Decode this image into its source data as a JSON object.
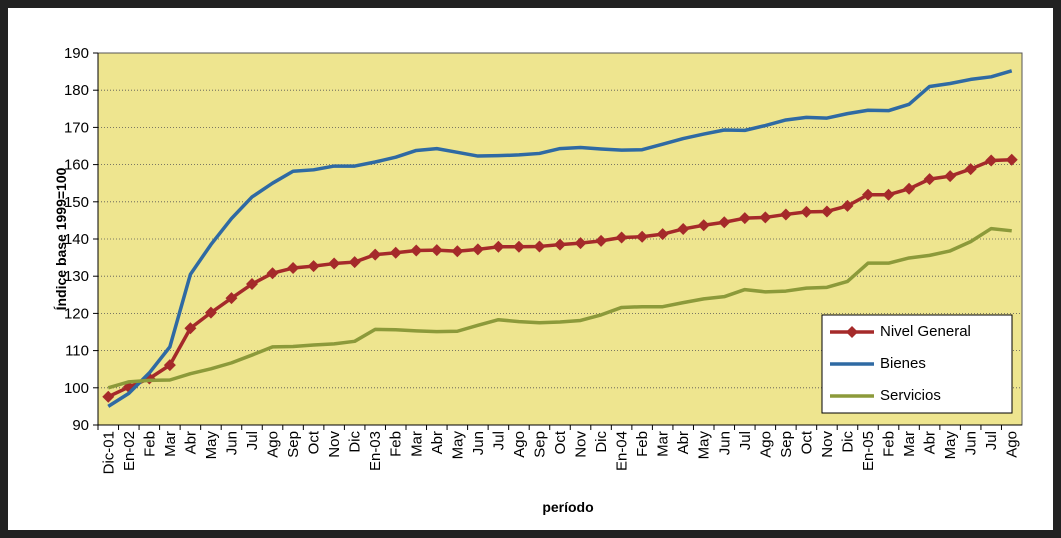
{
  "chart_data": {
    "type": "line",
    "x_label": "período",
    "y_label": "Índice base 1999=100",
    "categories": [
      "Dic-01",
      "En-02",
      "Feb",
      "Mar",
      "Abr",
      "May",
      "Jun",
      "Jul",
      "Ago",
      "Sep",
      "Oct",
      "Nov",
      "Dic",
      "En-03",
      "Feb",
      "Mar",
      "Abr",
      "May",
      "Jun",
      "Jul",
      "Ago",
      "Sep",
      "Oct",
      "Nov",
      "Dic",
      "En-04",
      "Feb",
      "Mar",
      "Abr",
      "May",
      "Jun",
      "Jul",
      "Ago",
      "Sep",
      "Oct",
      "Nov",
      "Dic",
      "En-05",
      "Feb",
      "Mar",
      "Abr",
      "May",
      "Jun",
      "Jul",
      "Ago"
    ],
    "series": [
      {
        "name": "Nivel General",
        "color": "#a52a2a",
        "marker": "diamond",
        "values": [
          97.6,
          100.2,
          102.5,
          106.1,
          116,
          120.2,
          124.1,
          127.9,
          130.8,
          132.2,
          132.7,
          133.4,
          133.8,
          135.8,
          136.3,
          136.9,
          137.0,
          136.7,
          137.2,
          137.9,
          137.9,
          138.0,
          138.5,
          138.9,
          139.5,
          140.4,
          140.6,
          141.3,
          142.7,
          143.7,
          144.5,
          145.6,
          145.8,
          146.6,
          147.3,
          147.4,
          148.9,
          151.9,
          151.9,
          153.5,
          156.1,
          156.9,
          158.8,
          161.1,
          161.3
        ]
      },
      {
        "name": "Bienes",
        "color": "#2f6aa3",
        "values": [
          95,
          98.5,
          104,
          111,
          130.5,
          138.5,
          145.5,
          151.3,
          155,
          158.2,
          158.6,
          159.6,
          159.6,
          160.7,
          162,
          163.8,
          164.3,
          163.3,
          162.3,
          162.4,
          162.6,
          163,
          164.3,
          164.6,
          164.2,
          163.9,
          164,
          165.5,
          167,
          168.2,
          169.3,
          169.2,
          170.5,
          172,
          172.7,
          172.5,
          173.7,
          174.6,
          174.5,
          176.2,
          181,
          181.8,
          182.9,
          183.6,
          185.2
        ]
      },
      {
        "name": "Servicios",
        "color": "#8c9a3a",
        "values": [
          100,
          101.6,
          102,
          102.1,
          103.8,
          105.1,
          106.7,
          108.8,
          111,
          111.1,
          111.5,
          111.8,
          112.5,
          115.7,
          115.6,
          115.3,
          115.1,
          115.2,
          116.8,
          118.3,
          117.8,
          117.5,
          117.7,
          118.1,
          119.6,
          121.6,
          121.8,
          121.8,
          122.9,
          123.9,
          124.5,
          126.4,
          125.8,
          126.0,
          126.8,
          127.0,
          128.6,
          133.5,
          133.5,
          134.9,
          135.6,
          136.8,
          139.3,
          142.8,
          142.2
        ]
      }
    ],
    "ylim": [
      90,
      190
    ],
    "yticks": [
      90,
      100,
      110,
      120,
      130,
      140,
      150,
      160,
      170,
      180,
      190
    ],
    "grid": true,
    "legend": "lower right",
    "background": "#eee58f"
  }
}
